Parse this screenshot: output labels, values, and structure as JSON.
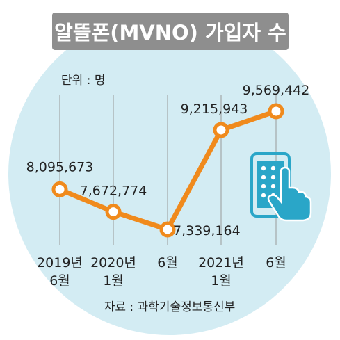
{
  "colors": {
    "background_circle": "#d3ecf3",
    "title_bg": "#8e8e8e",
    "title_text": "#ffffff",
    "line": "#f08a1c",
    "marker_fill": "#ffffff",
    "gridline": "#9a9a9a",
    "text": "#222222",
    "icon_phone": "#2aa6c8",
    "icon_hand": "#2aa6c8"
  },
  "chart_data": {
    "type": "line",
    "title": "알뜰폰(MVNO) 가입자 수",
    "unit_label": "단위 : 명",
    "source_label": "자료 : 과학기술정보통신부",
    "x_labels": [
      {
        "line1": "2019년",
        "line2": "6월"
      },
      {
        "line1": "2020년",
        "line2": "1월"
      },
      {
        "line1": "6월",
        "line2": ""
      },
      {
        "line1": "2021년",
        "line2": "1월"
      },
      {
        "line1": "6월",
        "line2": ""
      }
    ],
    "values": [
      8095673,
      7672774,
      7339164,
      9215943,
      9569442
    ],
    "value_labels": [
      "8,095,673",
      "7,672,774",
      "7,339,164",
      "9,215,943",
      "9,569,442"
    ],
    "grid": "vertical",
    "icon": "smartphone-touch-icon"
  }
}
